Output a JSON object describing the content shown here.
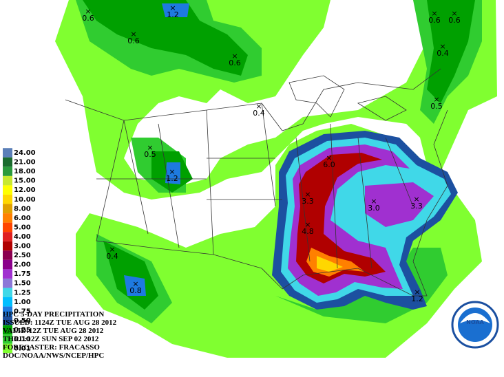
{
  "title": "HPC 5-DAY PRECIPITATION",
  "issued": "ISSUED: 1124Z TUE AUG 28 2012",
  "valid": "VALID:12Z TUE AUG 28 2012",
  "thru": "THRU:12Z SUN SEP 02 2012",
  "forecaster": "FORECASTER: FRACASSO",
  "source": "DOC/NOAA/NWS/NCEP/HPC",
  "logo": "NOAA",
  "legend": [
    {
      "label": "24.00",
      "color": "#5b7fb8"
    },
    {
      "label": "21.00",
      "color": "#1a6b2e"
    },
    {
      "label": "18.00",
      "color": "#2a9a3c"
    },
    {
      "label": "15.00",
      "color": "#c8e830"
    },
    {
      "label": "12.00",
      "color": "#ffff00"
    },
    {
      "label": "10.00",
      "color": "#ffd700"
    },
    {
      "label": "8.00",
      "color": "#e0a000"
    },
    {
      "label": "6.00",
      "color": "#ff8000"
    },
    {
      "label": "5.00",
      "color": "#ff4500"
    },
    {
      "label": "4.00",
      "color": "#e02020"
    },
    {
      "label": "3.00",
      "color": "#b00000"
    },
    {
      "label": "2.50",
      "color": "#8b0050"
    },
    {
      "label": "2.00",
      "color": "#8b008b"
    },
    {
      "label": "1.75",
      "color": "#a030d0"
    },
    {
      "label": "1.50",
      "color": "#8c78d8"
    },
    {
      "label": "1.25",
      "color": "#40d8e8"
    },
    {
      "label": "1.00",
      "color": "#00bfff"
    },
    {
      "label": "0.75",
      "color": "#1e7ae0"
    },
    {
      "label": "0.50",
      "color": "#1c50a0"
    },
    {
      "label": "0.25",
      "color": "#00a000"
    },
    {
      "label": "0.10",
      "color": "#30cc30"
    },
    {
      "label": "0.01",
      "color": "#80ff30"
    }
  ],
  "points": [
    "1.2",
    "0.6",
    "0.6",
    "0.6",
    "0.6",
    "0.6",
    "0.4",
    "0.4",
    "0.5",
    "0.5",
    "1.2",
    "6.0",
    "3.3",
    "3.0",
    "3.3",
    "4.8",
    "0.4",
    "0.8",
    "1.2"
  ]
}
